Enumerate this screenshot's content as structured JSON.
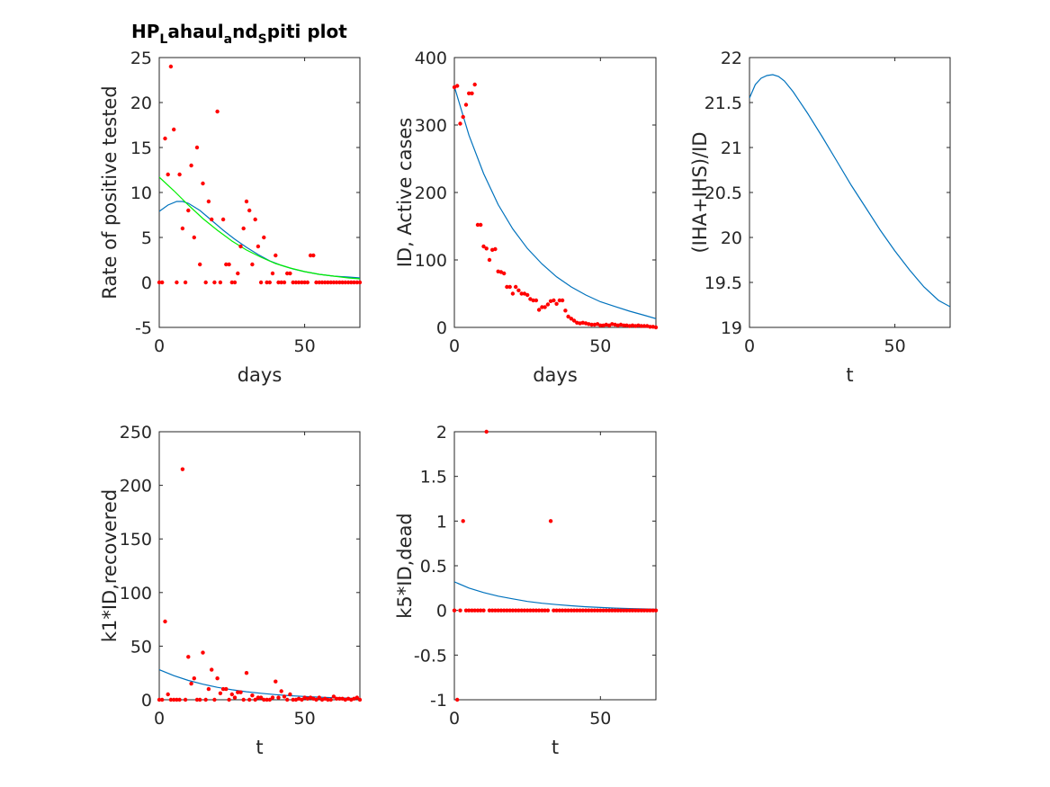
{
  "figure": {
    "colors": {
      "scatter": "#ff0000",
      "fit": "#0072bd",
      "fit2": "#00ee00",
      "axis": "#262626"
    }
  },
  "chart_data": [
    {
      "type": "scatter",
      "title": {
        "main": "HP",
        "sub1": "L",
        "mid1": "ahaul",
        "sub2": "a",
        "mid2": "nd",
        "sub3": "S",
        "end": "piti plot"
      },
      "xlabel": "days",
      "ylabel": "Rate of positive tested",
      "xlim": [
        0,
        69
      ],
      "ylim": [
        -5,
        25
      ],
      "xticks": [
        0,
        50
      ],
      "yticks": [
        -5,
        0,
        5,
        10,
        15,
        20,
        25
      ],
      "series": [
        {
          "kind": "points",
          "x": [
            0,
            1,
            2,
            3,
            4,
            5,
            6,
            7,
            8,
            9,
            10,
            11,
            12,
            13,
            14,
            15,
            16,
            17,
            18,
            19,
            20,
            21,
            22,
            23,
            24,
            25,
            26,
            27,
            28,
            29,
            30,
            31,
            32,
            33,
            34,
            35,
            36,
            37,
            38,
            39,
            40,
            41,
            42,
            43,
            44,
            45,
            46,
            47,
            48,
            49,
            50,
            51,
            52,
            53,
            54,
            55,
            56,
            57,
            58,
            59,
            60,
            61,
            62,
            63,
            64,
            65,
            66,
            67,
            68,
            69
          ],
          "y": [
            0,
            0,
            16,
            12,
            24,
            17,
            0,
            12,
            6,
            0,
            8,
            13,
            5,
            15,
            2,
            11,
            0,
            9,
            7,
            0,
            19,
            0,
            7,
            2,
            2,
            0,
            0,
            1,
            4,
            6,
            9,
            8,
            2,
            7,
            4,
            0,
            5,
            0,
            0,
            1,
            3,
            0,
            0,
            0,
            1,
            1,
            0,
            0,
            0,
            0,
            0,
            0,
            3,
            3,
            0,
            0,
            0,
            0,
            0,
            0,
            0,
            0,
            0,
            0,
            0,
            0,
            0,
            0,
            0,
            0
          ]
        },
        {
          "kind": "line",
          "x": [
            0,
            3,
            6,
            8,
            10,
            14,
            18,
            22,
            26,
            30,
            34,
            38,
            42,
            46,
            50,
            55,
            60,
            65,
            69
          ],
          "y": [
            7.9,
            8.6,
            9.0,
            9.0,
            8.8,
            8.0,
            6.9,
            5.8,
            4.8,
            3.9,
            3.1,
            2.4,
            1.9,
            1.5,
            1.2,
            0.9,
            0.7,
            0.6,
            0.5
          ]
        },
        {
          "kind": "line2",
          "x": [
            0,
            5,
            10,
            15,
            20,
            25,
            30,
            35,
            40,
            45,
            50,
            55,
            60,
            65,
            69
          ],
          "y": [
            11.7,
            10.2,
            8.6,
            7.1,
            5.8,
            4.6,
            3.6,
            2.8,
            2.1,
            1.6,
            1.2,
            0.9,
            0.7,
            0.5,
            0.4
          ]
        }
      ]
    },
    {
      "type": "scatter",
      "xlabel": "days",
      "ylabel": "ID, Active cases",
      "xlim": [
        0,
        69
      ],
      "ylim": [
        0,
        400
      ],
      "xticks": [
        0,
        50
      ],
      "yticks": [
        0,
        100,
        200,
        300,
        400
      ],
      "series": [
        {
          "kind": "points",
          "x": [
            0,
            1,
            2,
            3,
            4,
            5,
            6,
            7,
            8,
            9,
            10,
            11,
            12,
            13,
            14,
            15,
            16,
            17,
            18,
            19,
            20,
            21,
            22,
            23,
            24,
            25,
            26,
            27,
            28,
            29,
            30,
            31,
            32,
            33,
            34,
            35,
            36,
            37,
            38,
            39,
            40,
            41,
            42,
            43,
            44,
            45,
            46,
            47,
            48,
            49,
            50,
            51,
            52,
            53,
            54,
            55,
            56,
            57,
            58,
            59,
            60,
            61,
            62,
            63,
            64,
            65,
            66,
            67,
            68,
            69
          ],
          "y": [
            356,
            358,
            302,
            312,
            330,
            347,
            347,
            360,
            152,
            152,
            120,
            117,
            100,
            115,
            116,
            83,
            82,
            80,
            60,
            60,
            50,
            60,
            55,
            50,
            50,
            48,
            42,
            40,
            40,
            26,
            30,
            30,
            34,
            39,
            40,
            35,
            40,
            40,
            25,
            16,
            13,
            10,
            7,
            6,
            7,
            6,
            5,
            4,
            4,
            5,
            3,
            3,
            4,
            3,
            5,
            4,
            3,
            4,
            3,
            3,
            2,
            3,
            2,
            3,
            2,
            2,
            2,
            1,
            1,
            0
          ]
        },
        {
          "kind": "line",
          "x": [
            0,
            5,
            10,
            15,
            20,
            25,
            30,
            35,
            40,
            45,
            50,
            55,
            60,
            65,
            69
          ],
          "y": [
            357,
            285,
            228,
            182,
            146,
            117,
            94,
            75,
            60,
            48,
            38,
            31,
            24,
            18,
            13
          ]
        }
      ]
    },
    {
      "type": "line",
      "xlabel": "t",
      "ylabel": "(IHA+IHS)/ID",
      "xlim": [
        0,
        69
      ],
      "ylim": [
        19,
        22
      ],
      "xticks": [
        0,
        50
      ],
      "yticks": [
        19,
        19.5,
        20,
        20.5,
        21,
        21.5,
        22
      ],
      "series": [
        {
          "kind": "line",
          "x": [
            0,
            2,
            4,
            6,
            8,
            10,
            12,
            15,
            20,
            25,
            30,
            35,
            40,
            45,
            50,
            55,
            60,
            65,
            69
          ],
          "y": [
            21.55,
            21.7,
            21.77,
            21.8,
            21.81,
            21.79,
            21.74,
            21.62,
            21.38,
            21.12,
            20.85,
            20.58,
            20.33,
            20.08,
            19.85,
            19.64,
            19.45,
            19.3,
            19.23
          ]
        }
      ]
    },
    {
      "type": "scatter",
      "xlabel": "t",
      "ylabel": "k1*ID,recovered",
      "xlim": [
        0,
        69
      ],
      "ylim": [
        0,
        250
      ],
      "xticks": [
        0,
        50
      ],
      "yticks": [
        0,
        50,
        100,
        150,
        200,
        250
      ],
      "series": [
        {
          "kind": "points",
          "x": [
            0,
            1,
            2,
            3,
            4,
            5,
            6,
            7,
            8,
            9,
            10,
            11,
            12,
            13,
            14,
            15,
            16,
            17,
            18,
            19,
            20,
            21,
            22,
            23,
            24,
            25,
            26,
            27,
            28,
            29,
            30,
            31,
            32,
            33,
            34,
            35,
            36,
            37,
            38,
            39,
            40,
            41,
            42,
            43,
            44,
            45,
            46,
            47,
            48,
            49,
            50,
            51,
            52,
            53,
            54,
            55,
            56,
            57,
            58,
            59,
            60,
            61,
            62,
            63,
            64,
            65,
            66,
            67,
            68,
            69
          ],
          "y": [
            0,
            0,
            73,
            5,
            0,
            0,
            0,
            0,
            215,
            0,
            40,
            15,
            20,
            0,
            0,
            44,
            0,
            10,
            28,
            0,
            20,
            6,
            10,
            10,
            0,
            5,
            2,
            7,
            7,
            0,
            25,
            0,
            4,
            0,
            2,
            2,
            0,
            0,
            0,
            2,
            17,
            2,
            8,
            3,
            0,
            5,
            0,
            0,
            1,
            0,
            2,
            1,
            2,
            1,
            0,
            2,
            0,
            1,
            0,
            0,
            3,
            1,
            1,
            1,
            0,
            1,
            0,
            1,
            2,
            0
          ]
        },
        {
          "kind": "line",
          "x": [
            0,
            5,
            10,
            15,
            20,
            25,
            30,
            35,
            40,
            45,
            50,
            55,
            60,
            65,
            69
          ],
          "y": [
            28,
            22.5,
            18,
            14.5,
            11.6,
            9.3,
            7.5,
            6,
            4.8,
            3.8,
            3.1,
            2.4,
            1.9,
            1.5,
            1.2
          ]
        }
      ]
    },
    {
      "type": "scatter",
      "xlabel": "t",
      "ylabel": "k5*ID,dead",
      "xlim": [
        0,
        69
      ],
      "ylim": [
        -1,
        2
      ],
      "xticks": [
        0,
        50
      ],
      "yticks": [
        -1,
        -0.5,
        0,
        0.5,
        1,
        1.5,
        2
      ],
      "series": [
        {
          "kind": "points",
          "x": [
            0,
            1,
            2,
            3,
            4,
            5,
            6,
            7,
            8,
            9,
            10,
            11,
            12,
            13,
            14,
            15,
            16,
            17,
            18,
            19,
            20,
            21,
            22,
            23,
            24,
            25,
            26,
            27,
            28,
            29,
            30,
            31,
            32,
            33,
            34,
            35,
            36,
            37,
            38,
            39,
            40,
            41,
            42,
            43,
            44,
            45,
            46,
            47,
            48,
            49,
            50,
            51,
            52,
            53,
            54,
            55,
            56,
            57,
            58,
            59,
            60,
            61,
            62,
            63,
            64,
            65,
            66,
            67,
            68,
            69
          ],
          "y": [
            0,
            -1,
            0,
            1,
            0,
            0,
            0,
            0,
            0,
            0,
            0,
            2,
            0,
            0,
            0,
            0,
            0,
            0,
            0,
            0,
            0,
            0,
            0,
            0,
            0,
            0,
            0,
            0,
            0,
            0,
            0,
            0,
            0,
            1,
            0,
            0,
            0,
            0,
            0,
            0,
            0,
            0,
            0,
            0,
            0,
            0,
            0,
            0,
            0,
            0,
            0,
            0,
            0,
            0,
            0,
            0,
            0,
            0,
            0,
            0,
            0,
            0,
            0,
            0,
            0,
            0,
            0,
            0,
            0,
            0
          ]
        },
        {
          "kind": "line",
          "x": [
            0,
            5,
            10,
            15,
            20,
            25,
            30,
            35,
            40,
            45,
            50,
            55,
            60,
            65,
            69
          ],
          "y": [
            0.32,
            0.25,
            0.2,
            0.16,
            0.13,
            0.1,
            0.08,
            0.065,
            0.052,
            0.041,
            0.033,
            0.026,
            0.021,
            0.017,
            0.014
          ]
        }
      ]
    }
  ]
}
